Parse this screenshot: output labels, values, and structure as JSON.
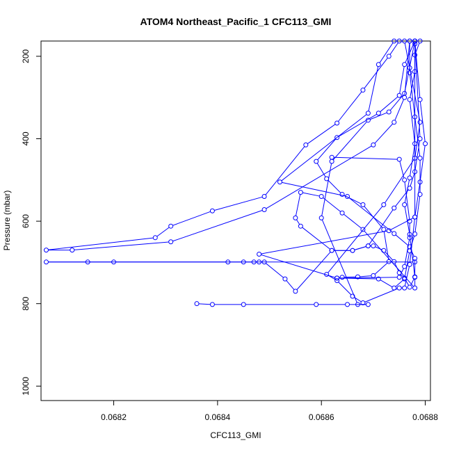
{
  "chart_data": {
    "type": "line",
    "title": "ATOM4 Northeast_Pacific_1 CFC113_GMI",
    "xlabel": "CFC113_GMI",
    "ylabel": "Pressure (mbar)",
    "xlim": [
      0.06806,
      0.06881
    ],
    "ylim": [
      1035,
      163
    ],
    "y_reversed": true,
    "xticks": [
      0.0682,
      0.0684,
      0.0686,
      0.0688
    ],
    "xtick_labels": [
      "0.0682",
      "0.0684",
      "0.0686",
      "0.0688"
    ],
    "yticks": [
      200,
      400,
      600,
      800,
      1000
    ],
    "ytick_labels": [
      "200",
      "400",
      "600",
      "800",
      "1000"
    ],
    "grid": false,
    "legend": "none",
    "line_color": "#0000ff",
    "marker": "open-circle",
    "series": [
      {
        "points": [
          [
            0.06879,
            163
          ],
          [
            0.06878,
            197
          ],
          [
            0.06878,
            237
          ],
          [
            0.06877,
            305
          ],
          [
            0.06878,
            412
          ],
          [
            0.06877,
            495
          ],
          [
            0.06876,
            560
          ],
          [
            0.06877,
            632
          ],
          [
            0.06878,
            736
          ],
          [
            0.06877,
            760
          ],
          [
            0.06876,
            738
          ],
          [
            0.06875,
            725
          ],
          [
            0.06874,
            698
          ],
          [
            0.06872,
            671
          ],
          [
            0.0687,
            660
          ],
          [
            0.06869,
            660
          ],
          [
            0.06866,
            671
          ],
          [
            0.06862,
            671
          ],
          [
            0.06855,
            770
          ],
          [
            0.06853,
            740
          ],
          [
            0.06849,
            699
          ],
          [
            0.06848,
            699
          ],
          [
            0.06847,
            699
          ],
          [
            0.06845,
            699
          ],
          [
            0.06842,
            699
          ],
          [
            0.0682,
            699
          ],
          [
            0.06815,
            699
          ],
          [
            0.06807,
            699
          ],
          [
            0.06878,
            699
          ]
        ]
      },
      {
        "points": [
          [
            0.06878,
            163
          ],
          [
            0.06879,
            305
          ],
          [
            0.0688,
            412
          ],
          [
            0.06879,
            505
          ],
          [
            0.06878,
            590
          ],
          [
            0.06877,
            705
          ],
          [
            0.06876,
            762
          ],
          [
            0.06875,
            762
          ],
          [
            0.06868,
            798
          ],
          [
            0.06866,
            782
          ],
          [
            0.06863,
            744
          ],
          [
            0.06861,
            729
          ],
          [
            0.06872,
            560
          ],
          [
            0.06878,
            447
          ],
          [
            0.06879,
            360
          ],
          [
            0.06877,
            228
          ],
          [
            0.06876,
            163
          ]
        ]
      },
      {
        "points": [
          [
            0.06877,
            163
          ],
          [
            0.06877,
            240
          ],
          [
            0.06878,
            347
          ],
          [
            0.06879,
            447
          ],
          [
            0.06879,
            535
          ],
          [
            0.06878,
            631
          ],
          [
            0.06877,
            672
          ],
          [
            0.06876,
            740
          ],
          [
            0.06874,
            762
          ],
          [
            0.06871,
            740
          ],
          [
            0.06863,
            738
          ],
          [
            0.06864,
            736
          ],
          [
            0.06867,
            735
          ],
          [
            0.0687,
            732
          ],
          [
            0.06873,
            698
          ],
          [
            0.06872,
            620
          ],
          [
            0.06868,
            560
          ],
          [
            0.06864,
            535
          ],
          [
            0.06861,
            497
          ],
          [
            0.06859,
            455
          ],
          [
            0.06863,
            397
          ],
          [
            0.06871,
            338
          ],
          [
            0.06875,
            295
          ],
          [
            0.06876,
            220
          ],
          [
            0.06878,
            163
          ]
        ]
      },
      {
        "points": [
          [
            0.06875,
            163
          ],
          [
            0.06873,
            200
          ],
          [
            0.06868,
            282
          ],
          [
            0.06863,
            362
          ],
          [
            0.06857,
            415
          ],
          [
            0.06849,
            540
          ],
          [
            0.06839,
            575
          ],
          [
            0.06831,
            612
          ],
          [
            0.06828,
            640
          ],
          [
            0.06807,
            670
          ],
          [
            0.06812,
            670
          ],
          [
            0.06831,
            650
          ],
          [
            0.06849,
            572
          ],
          [
            0.0687,
            415
          ],
          [
            0.06874,
            360
          ],
          [
            0.06876,
            300
          ],
          [
            0.06877,
            163
          ]
        ]
      },
      {
        "points": [
          [
            0.06874,
            163
          ],
          [
            0.06871,
            220
          ],
          [
            0.06869,
            338
          ],
          [
            0.06852,
            505
          ],
          [
            0.06865,
            540
          ],
          [
            0.06874,
            630
          ],
          [
            0.06877,
            662
          ],
          [
            0.06878,
            690
          ],
          [
            0.06878,
            735
          ],
          [
            0.06878,
            762
          ],
          [
            0.06868,
            620
          ],
          [
            0.06864,
            580
          ],
          [
            0.0686,
            540
          ],
          [
            0.06856,
            530
          ],
          [
            0.06855,
            592
          ],
          [
            0.06856,
            612
          ],
          [
            0.06862,
            671
          ],
          [
            0.06866,
            671
          ],
          [
            0.06869,
            660
          ],
          [
            0.06874,
            568
          ],
          [
            0.06877,
            520
          ],
          [
            0.06878,
            480
          ],
          [
            0.06879,
            400
          ],
          [
            0.06878,
            163
          ]
        ]
      },
      {
        "points": [
          [
            0.06836,
            800
          ],
          [
            0.06839,
            802
          ],
          [
            0.06845,
            802
          ],
          [
            0.06859,
            802
          ],
          [
            0.06865,
            802
          ],
          [
            0.06869,
            802
          ],
          [
            0.06867,
            802
          ],
          [
            0.0686,
            592
          ],
          [
            0.06862,
            455
          ],
          [
            0.06869,
            355
          ],
          [
            0.06873,
            335
          ],
          [
            0.06876,
            290
          ],
          [
            0.06878,
            163
          ]
        ]
      },
      {
        "points": [
          [
            0.06862,
            445
          ],
          [
            0.06875,
            450
          ],
          [
            0.06876,
            500
          ],
          [
            0.06877,
            600
          ],
          [
            0.06877,
            640
          ],
          [
            0.06876,
            710
          ],
          [
            0.06875,
            736
          ],
          [
            0.06863,
            738
          ],
          [
            0.06848,
            680
          ],
          [
            0.06873,
            623
          ],
          [
            0.06878,
            590
          ],
          [
            0.06878,
            170
          ]
        ]
      }
    ]
  }
}
